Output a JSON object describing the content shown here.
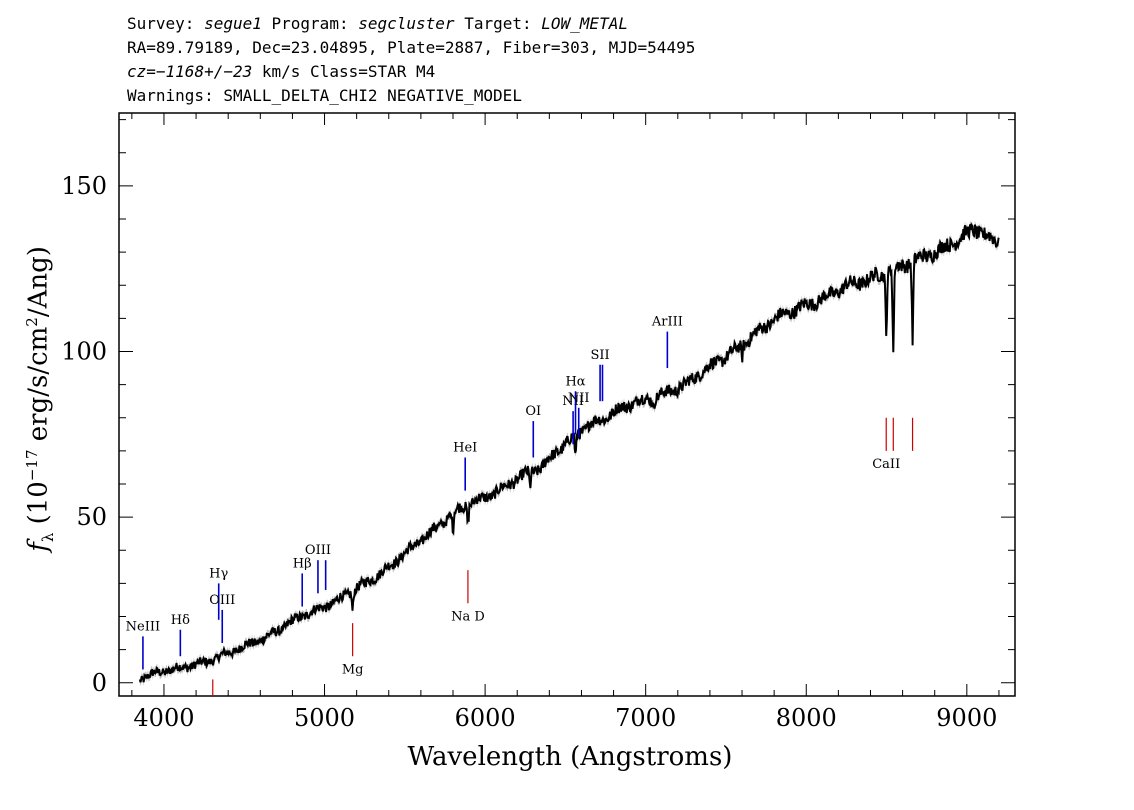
{
  "header": {
    "line1": {
      "survey_label": "Survey:",
      "survey": "segue1",
      "program_label": "Program:",
      "program": "segcluster",
      "target_label": "Target:",
      "target": "LOW_METAL"
    },
    "line2": "RA=89.79189, Dec=23.04895, Plate=2887, Fiber=303, MJD=54495",
    "line3": {
      "cz_label": "cz=",
      "cz": "−1168+/−23",
      "cz_unit": "km/s",
      "class": "Class=STAR M4"
    },
    "line4": "Warnings: SMALL_DELTA_CHI2 NEGATIVE_MODEL"
  },
  "chart_data": {
    "type": "line",
    "xlabel": "Wavelength (Angstroms)",
    "ylabel_parts": {
      "f": "f",
      "sub": "λ",
      "rest_a": " (10",
      "exp": "−17",
      "rest_b": " erg/s/cm",
      "exp2": "2",
      "rest_c": "/Ang)"
    },
    "xlim": [
      3720,
      9300
    ],
    "ylim": [
      -4,
      172
    ],
    "xticks": [
      4000,
      5000,
      6000,
      7000,
      8000,
      9000
    ],
    "yticks": [
      0,
      50,
      100,
      150
    ],
    "colors": {
      "spectrum": "#000000",
      "error_band": "#c0c0c0",
      "emission": "#0000cc",
      "absorption": "#cc0000"
    },
    "series": [
      {
        "x": [
          3850,
          3950,
          4050,
          4150,
          4250,
          4350,
          4450,
          4550,
          4650,
          4750,
          4850,
          4950,
          5050,
          5150,
          5250,
          5350,
          5450,
          5550,
          5650,
          5750,
          5850,
          5950,
          6050,
          6150,
          6250,
          6350,
          6450,
          6550,
          6650,
          6750,
          6850,
          6950,
          7050,
          7150,
          7250,
          7350,
          7450,
          7550,
          7650,
          7750,
          7850,
          7950,
          8050,
          8150,
          8250,
          8350,
          8450,
          8550,
          8650,
          8750,
          8850,
          8950,
          9050,
          9150,
          9200
        ],
        "values": [
          1,
          3,
          4,
          5,
          6,
          8,
          10,
          12,
          14,
          17,
          20,
          22,
          24,
          27,
          30,
          33,
          37,
          41,
          45,
          49,
          53,
          55,
          57,
          60,
          63,
          65,
          70,
          74,
          78,
          80,
          83,
          85,
          86,
          88,
          90,
          94,
          97,
          100,
          104,
          108,
          111,
          113,
          115,
          117,
          120,
          121,
          123,
          125,
          127,
          129,
          131,
          134,
          137,
          134,
          133
        ]
      }
    ],
    "absorption_dips": [
      {
        "x": 5175,
        "depth": 6
      },
      {
        "x": 5800,
        "depth": 6
      },
      {
        "x": 5893,
        "depth": 6
      },
      {
        "x": 6280,
        "depth": 5
      },
      {
        "x": 6563,
        "depth": 7
      },
      {
        "x": 7050,
        "depth": 3
      },
      {
        "x": 7600,
        "depth": 4
      },
      {
        "x": 8498,
        "depth": 19
      },
      {
        "x": 8542,
        "depth": 26
      },
      {
        "x": 8662,
        "depth": 24
      }
    ],
    "emission_lines": [
      {
        "label": "NeIII",
        "x": 3869,
        "y0": 4,
        "y1": 14
      },
      {
        "label": "Hδ",
        "x": 4102,
        "y0": 8,
        "y1": 16
      },
      {
        "label": "Hγ",
        "x": 4341,
        "y0": 19,
        "y1": 30
      },
      {
        "label": "OIII",
        "x": 4363,
        "y0": 12,
        "y1": 22
      },
      {
        "label": "Hβ",
        "x": 4861,
        "y0": 23,
        "y1": 33
      },
      {
        "label": "OIII",
        "x": 4959,
        "y0": 27,
        "y1": 37
      },
      {
        "label": "",
        "x": 5007,
        "y0": 28,
        "y1": 37
      },
      {
        "label": "HeI",
        "x": 5876,
        "y0": 58,
        "y1": 68
      },
      {
        "label": "OI",
        "x": 6300,
        "y0": 68,
        "y1": 79
      },
      {
        "label": "NII",
        "x": 6548,
        "y0": 72,
        "y1": 82
      },
      {
        "label": "Hα",
        "x": 6563,
        "y0": 75,
        "y1": 88
      },
      {
        "label": "NII",
        "x": 6583,
        "y0": 74,
        "y1": 83
      },
      {
        "label": "SII",
        "x": 6716,
        "y0": 85,
        "y1": 96
      },
      {
        "label": "",
        "x": 6731,
        "y0": 85,
        "y1": 96
      },
      {
        "label": "ArIII",
        "x": 7135,
        "y0": 95,
        "y1": 106
      }
    ],
    "absorption_lines": [
      {
        "label": "",
        "x": 4304,
        "y0": -4,
        "y1": 1
      },
      {
        "label": "Mg",
        "x": 5175,
        "y0": 8,
        "y1": 18
      },
      {
        "label": "Na D",
        "x": 5893,
        "y0": 24,
        "y1": 34
      },
      {
        "label": "CaII",
        "x": 8498,
        "y0": 70,
        "y1": 80
      },
      {
        "label": "",
        "x": 8542,
        "y0": 70,
        "y1": 80
      },
      {
        "label": "",
        "x": 8662,
        "y0": 70,
        "y1": 80
      }
    ]
  }
}
